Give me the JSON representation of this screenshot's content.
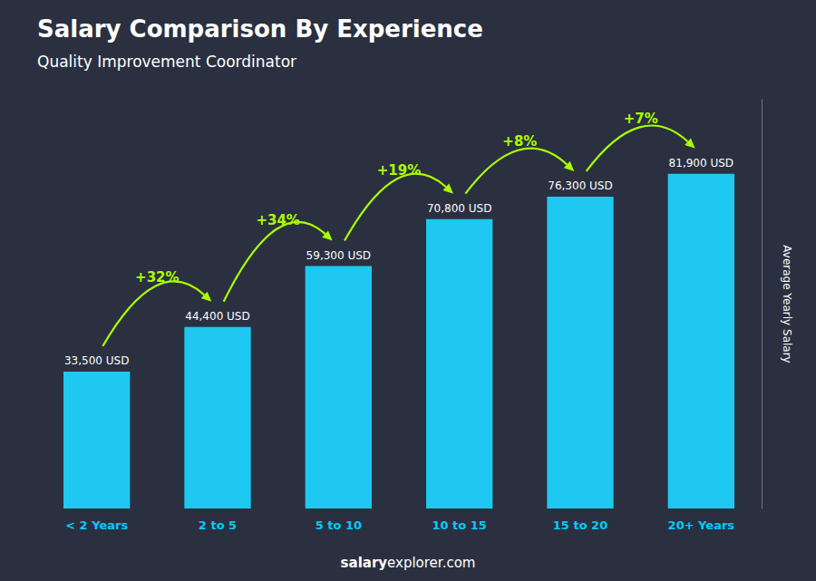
{
  "chart_data": {
    "type": "bar",
    "title": "Salary Comparison By Experience",
    "subtitle": "Quality Improvement Coordinator",
    "footer": [
      "salary",
      "explorer.com"
    ],
    "categories": [
      "< 2 Years",
      "2 to 5",
      "5 to 10",
      "10 to 15",
      "15 to 20",
      "20+ Years"
    ],
    "values": [
      33500,
      44400,
      59300,
      70800,
      76300,
      81900
    ],
    "value_labels": [
      "33,500 USD",
      "44,400 USD",
      "59,300 USD",
      "70,800 USD",
      "76,300 USD",
      "81,900 USD"
    ],
    "annotations": [
      "+32%",
      "+34%",
      "+19%",
      "+8%",
      "+7%"
    ],
    "color": "#1ec8f0",
    "ylabel": "Average Yearly Salary",
    "ylim": [
      0,
      100000
    ],
    "grid": false,
    "data_labels": true,
    "tick_labels": "x"
  }
}
